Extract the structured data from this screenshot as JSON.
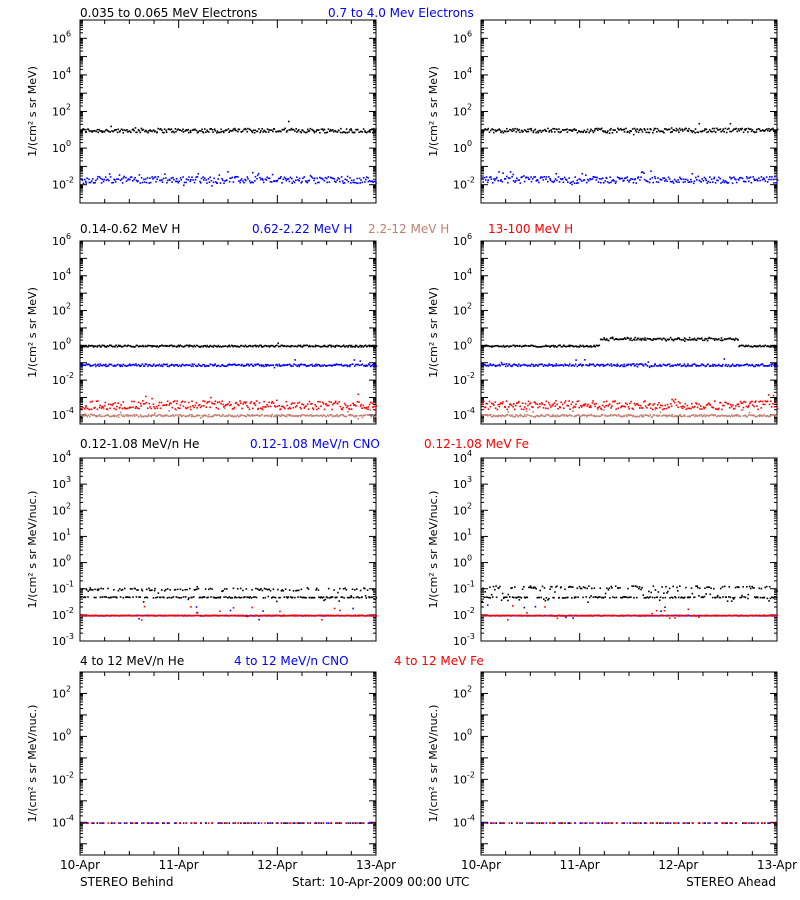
{
  "chart_data": [
    {
      "type": "scatter",
      "panel": "row1-left",
      "yscale": "log",
      "ylim": [
        0.001,
        10000000
      ],
      "ylabel": "1/(cm² s sr MeV)",
      "yticks": [
        {
          "exp": "-2",
          "v": 0.01
        },
        {
          "exp": "0",
          "v": 1
        },
        {
          "exp": "2",
          "v": 100
        },
        {
          "exp": "4",
          "v": 10000
        },
        {
          "exp": "6",
          "v": 1000000
        }
      ],
      "series": [
        {
          "name": "0.035 to 0.065 MeV Electrons",
          "color": "#000000",
          "level": 10,
          "spread": 0.12,
          "outlier": 0.02
        },
        {
          "name": "0.7 to 4.0 Mev Electrons",
          "color": "#0000ff",
          "level": 0.02,
          "spread": 0.18,
          "outlier": 0.08
        }
      ]
    },
    {
      "type": "scatter",
      "panel": "row1-right",
      "yscale": "log",
      "ylim": [
        0.001,
        10000000
      ],
      "ylabel": "1/(cm² s sr MeV)",
      "yticks": [
        {
          "exp": "-2",
          "v": 0.01
        },
        {
          "exp": "0",
          "v": 1
        },
        {
          "exp": "2",
          "v": 100
        },
        {
          "exp": "4",
          "v": 10000
        },
        {
          "exp": "6",
          "v": 1000000
        }
      ],
      "series": [
        {
          "name": "0.035 to 0.065 MeV Electrons",
          "color": "#000000",
          "level": 10,
          "spread": 0.12,
          "outlier": 0.02
        },
        {
          "name": "0.7 to 4.0 Mev Electrons",
          "color": "#0000ff",
          "level": 0.02,
          "spread": 0.18,
          "outlier": 0.08
        }
      ]
    },
    {
      "type": "scatter",
      "panel": "row2-left",
      "yscale": "log",
      "ylim": [
        3e-05,
        1000000
      ],
      "ylabel": "1/(cm² s sr MeV)",
      "yticks": [
        {
          "exp": "-4",
          "v": 0.0001
        },
        {
          "exp": "-2",
          "v": 0.01
        },
        {
          "exp": "0",
          "v": 1
        },
        {
          "exp": "2",
          "v": 100
        },
        {
          "exp": "4",
          "v": 10000
        },
        {
          "exp": "6",
          "v": 1000000
        }
      ],
      "series": [
        {
          "name": "0.14-0.62 MeV H",
          "color": "#000000",
          "level": 1,
          "spread": 0.05,
          "outlier": 0.01
        },
        {
          "name": "0.62-2.22 MeV H",
          "color": "#0000ff",
          "level": 0.08,
          "spread": 0.07,
          "outlier": 0.02
        },
        {
          "name": "2.2-12 MeV H",
          "color": "#c08070",
          "level": 0.0001,
          "spread": 0.06,
          "outlier": 0.05
        },
        {
          "name": "13-100 MeV H",
          "color": "#ff0000",
          "level": 0.0004,
          "spread": 0.25,
          "outlier": 0.04
        }
      ]
    },
    {
      "type": "scatter",
      "panel": "row2-right",
      "yscale": "log",
      "ylim": [
        3e-05,
        1000000
      ],
      "ylabel": "1/(cm² s sr MeV)",
      "yticks": [
        {
          "exp": "-4",
          "v": 0.0001
        },
        {
          "exp": "-2",
          "v": 0.01
        },
        {
          "exp": "0",
          "v": 1
        },
        {
          "exp": "2",
          "v": 100
        },
        {
          "exp": "4",
          "v": 10000
        },
        {
          "exp": "6",
          "v": 1000000
        }
      ],
      "series": [
        {
          "name": "0.14-0.62 MeV H",
          "color": "#000000",
          "level": 1,
          "spread": 0.05,
          "outlier": 0.01,
          "bump": {
            "from": 1.2,
            "to": 2.6,
            "factor": 2.5
          }
        },
        {
          "name": "0.62-2.22 MeV H",
          "color": "#0000ff",
          "level": 0.08,
          "spread": 0.07,
          "outlier": 0.02
        },
        {
          "name": "2.2-12 MeV H",
          "color": "#c08070",
          "level": 0.0001,
          "spread": 0.06,
          "outlier": 0.05
        },
        {
          "name": "13-100 MeV H",
          "color": "#ff0000",
          "level": 0.0004,
          "spread": 0.25,
          "outlier": 0.04
        }
      ]
    },
    {
      "type": "scatter",
      "panel": "row3-left",
      "yscale": "log",
      "ylim": [
        0.001,
        10000
      ],
      "ylabel": "1/(cm² s sr MeV/nuc.)",
      "yticks": [
        {
          "exp": "-3",
          "v": 0.001
        },
        {
          "exp": "-2",
          "v": 0.01
        },
        {
          "exp": "-1",
          "v": 0.1
        },
        {
          "exp": "0",
          "v": 1
        },
        {
          "exp": "1",
          "v": 10
        },
        {
          "exp": "2",
          "v": 100
        },
        {
          "exp": "3",
          "v": 1000
        },
        {
          "exp": "4",
          "v": 10000
        }
      ],
      "series": [
        {
          "name": "0.12-1.08 MeV/n He",
          "color": "#000000",
          "level": 0.05,
          "spread": 0.02,
          "outlier": 0.12,
          "upper": 0.1
        },
        {
          "name": "0.12-1.08 MeV/n CNO",
          "color": "#0000ff",
          "level": 0.01,
          "spread": 0.01,
          "outlier": 0.03
        },
        {
          "name": "0.12-1.08 MeV Fe",
          "color": "#ff0000",
          "level": 0.01,
          "spread": 0.01,
          "outlier": 0.02
        }
      ]
    },
    {
      "type": "scatter",
      "panel": "row3-right",
      "yscale": "log",
      "ylim": [
        0.001,
        10000
      ],
      "ylabel": "1/(cm² s sr MeV/nuc.)",
      "yticks": [
        {
          "exp": "-3",
          "v": 0.001
        },
        {
          "exp": "-2",
          "v": 0.01
        },
        {
          "exp": "-1",
          "v": 0.1
        },
        {
          "exp": "0",
          "v": 1
        },
        {
          "exp": "1",
          "v": 10
        },
        {
          "exp": "2",
          "v": 100
        },
        {
          "exp": "3",
          "v": 1000
        },
        {
          "exp": "4",
          "v": 10000
        }
      ],
      "series": [
        {
          "name": "0.12-1.08 MeV/n He",
          "color": "#000000",
          "level": 0.05,
          "spread": 0.02,
          "outlier": 0.25,
          "upper": 0.12
        },
        {
          "name": "0.12-1.08 MeV/n CNO",
          "color": "#0000ff",
          "level": 0.01,
          "spread": 0.01,
          "outlier": 0.03
        },
        {
          "name": "0.12-1.08 MeV Fe",
          "color": "#ff0000",
          "level": 0.01,
          "spread": 0.01,
          "outlier": 0.04
        }
      ]
    },
    {
      "type": "scatter",
      "panel": "row4-left",
      "yscale": "log",
      "ylim": [
        3e-06,
        1000
      ],
      "ylabel": "1/(cm² s sr MeV/nuc.)",
      "yticks": [
        {
          "exp": "-4",
          "v": 0.0001
        },
        {
          "exp": "-2",
          "v": 0.01
        },
        {
          "exp": "0",
          "v": 1
        },
        {
          "exp": "2",
          "v": 100
        }
      ],
      "series": [
        {
          "name": "4 to 12 MeV/n He",
          "color": "#000000",
          "level": 0.0001,
          "spread": 0.0,
          "outlier": 0.0,
          "sparse": true
        },
        {
          "name": "4 to 12 MeV/n CNO",
          "color": "#0000ff",
          "level": 0.0001,
          "spread": 0.0,
          "outlier": 0.0,
          "sparse": true
        },
        {
          "name": "4 to 12 MeV Fe",
          "color": "#ff0000",
          "level": 0.0001,
          "spread": 0.0,
          "outlier": 0.0,
          "sparse": true
        }
      ]
    },
    {
      "type": "scatter",
      "panel": "row4-right",
      "yscale": "log",
      "ylim": [
        3e-06,
        1000
      ],
      "ylabel": "1/(cm² s sr MeV/nuc.)",
      "yticks": [
        {
          "exp": "-4",
          "v": 0.0001
        },
        {
          "exp": "-2",
          "v": 0.01
        },
        {
          "exp": "0",
          "v": 1
        },
        {
          "exp": "2",
          "v": 100
        }
      ],
      "series": [
        {
          "name": "4 to 12 MeV/n He",
          "color": "#000000",
          "level": 0.0001,
          "spread": 0.0,
          "outlier": 0.0,
          "sparse": true
        },
        {
          "name": "4 to 12 MeV/n CNO",
          "color": "#0000ff",
          "level": 0.0001,
          "spread": 0.0,
          "outlier": 0.0,
          "sparse": true
        },
        {
          "name": "4 to 12 MeV Fe",
          "color": "#ff0000",
          "level": 0.0001,
          "spread": 0.0,
          "outlier": 0.0,
          "sparse": true
        }
      ]
    }
  ],
  "row_labels": [
    [
      {
        "text": "0.035 to 0.065 MeV Electrons",
        "color": "#000000"
      },
      {
        "text": "0.7 to 4.0 Mev Electrons",
        "color": "#0000ff"
      }
    ],
    [
      {
        "text": "0.14-0.62 MeV H",
        "color": "#000000"
      },
      {
        "text": "0.62-2.22 MeV H",
        "color": "#0000ff"
      },
      {
        "text": "2.2-12 MeV H",
        "color": "#c08070"
      },
      {
        "text": "13-100 MeV H",
        "color": "#ff0000"
      }
    ],
    [
      {
        "text": "0.12-1.08 MeV/n He",
        "color": "#000000"
      },
      {
        "text": "0.12-1.08 MeV/n CNO",
        "color": "#0000ff"
      },
      {
        "text": "0.12-1.08 MeV Fe",
        "color": "#ff0000"
      }
    ],
    [
      {
        "text": "4 to 12 MeV/n He",
        "color": "#000000"
      },
      {
        "text": "4 to 12 MeV/n CNO",
        "color": "#0000ff"
      },
      {
        "text": "4 to 12 MeV Fe",
        "color": "#ff0000"
      }
    ]
  ],
  "x_axis": {
    "range_days": [
      0,
      3
    ],
    "tick_labels": [
      "10-Apr",
      "11-Apr",
      "12-Apr",
      "13-Apr"
    ]
  },
  "footer": {
    "left": "STEREO Behind",
    "center": "Start: 10-Apr-2009 00:00 UTC",
    "right": "STEREO Ahead"
  }
}
